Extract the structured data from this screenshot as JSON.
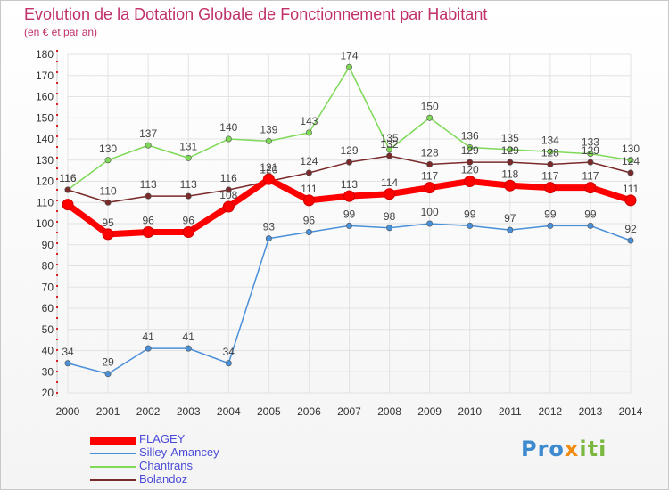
{
  "header": {
    "title": "Evolution de la Dotation Globale de Fonctionnement par Habitant",
    "subtitle": "(en € et par an)"
  },
  "logo": {
    "text_part1": "Pro",
    "text_part2": "x",
    "text_part3": "iti"
  },
  "colors": {
    "title": "#c0306a",
    "axis_text": "#333333",
    "grid": "#e2e2e2",
    "legend_text": "#4a4ad8"
  },
  "chart_data": {
    "type": "line",
    "x": [
      "2000",
      "2001",
      "2002",
      "2003",
      "2004",
      "2005",
      "2006",
      "2007",
      "2008",
      "2009",
      "2010",
      "2011",
      "2012",
      "2013",
      "2014"
    ],
    "ylim": [
      20,
      180
    ],
    "yticks": [
      20,
      30,
      40,
      50,
      60,
      70,
      80,
      90,
      100,
      110,
      120,
      130,
      140,
      150,
      160,
      170,
      180
    ],
    "grid": true,
    "legend_position": "bottom-left",
    "series": [
      {
        "name": "FLAGEY",
        "color": "#ff0000",
        "values": [
          109,
          95,
          96,
          96,
          108,
          121,
          111,
          113,
          114,
          117,
          120,
          118,
          117,
          117,
          111
        ],
        "labels": [
          "",
          "95",
          "96",
          "96",
          "108",
          "121",
          "111",
          "113",
          "114",
          "117",
          "120",
          "118",
          "117",
          "117",
          "111"
        ]
      },
      {
        "name": "Silley-Amancey",
        "color": "#4a90d9",
        "values": [
          34,
          29,
          41,
          41,
          34,
          93,
          96,
          99,
          98,
          100,
          99,
          97,
          99,
          99,
          92
        ],
        "labels": [
          "34",
          "29",
          "41",
          "41",
          "34",
          "93",
          "96",
          "99",
          "98",
          "100",
          "99",
          "97",
          "99",
          "99",
          "92"
        ]
      },
      {
        "name": "Chantrans",
        "color": "#7ed957",
        "values": [
          116,
          130,
          137,
          131,
          140,
          139,
          143,
          174,
          135,
          150,
          136,
          135,
          134,
          133,
          130
        ],
        "labels": [
          "116",
          "130",
          "137",
          "131",
          "140",
          "139",
          "143",
          "174",
          "135",
          "150",
          "136",
          "135",
          "134",
          "133",
          "130"
        ]
      },
      {
        "name": "Bolandoz",
        "color": "#7a2a2a",
        "values": [
          116,
          110,
          113,
          113,
          116,
          120,
          124,
          129,
          132,
          128,
          129,
          129,
          128,
          129,
          124
        ],
        "labels": [
          "116",
          "110",
          "113",
          "113",
          "116",
          "120",
          "124",
          "129",
          "132",
          "128",
          "129",
          "129",
          "128",
          "129",
          "124"
        ]
      }
    ]
  }
}
